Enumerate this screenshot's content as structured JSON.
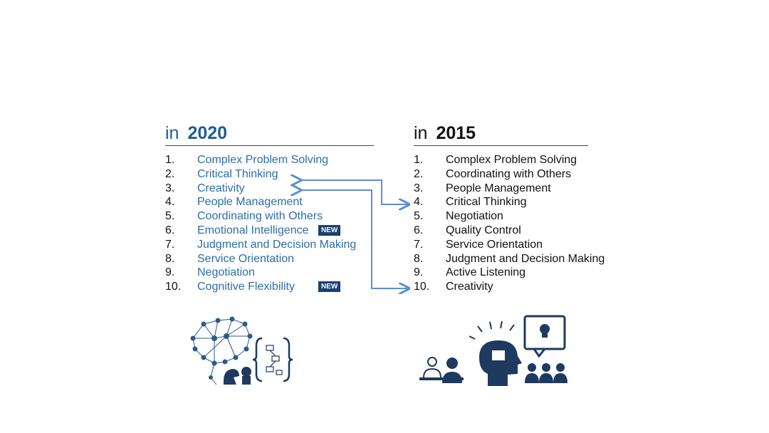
{
  "col2020": {
    "in": "in",
    "year": "2020",
    "items": [
      {
        "num": "1.",
        "label": "Complex Problem Solving"
      },
      {
        "num": "2.",
        "label": "Critical Thinking"
      },
      {
        "num": "3.",
        "label": "Creativity"
      },
      {
        "num": "4.",
        "label": "People Management"
      },
      {
        "num": "5.",
        "label": "Coordinating with Others"
      },
      {
        "num": "6.",
        "label": "Emotional Intelligence",
        "badge": "NEW"
      },
      {
        "num": "7.",
        "label": "Judgment and Decision Making"
      },
      {
        "num": "8.",
        "label": "Service Orientation"
      },
      {
        "num": "9.",
        "label": "Negotiation"
      },
      {
        "num": "10.",
        "label": "Cognitive Flexibility",
        "badge": "NEW"
      }
    ]
  },
  "col2015": {
    "in": "in",
    "year": "2015",
    "items": [
      {
        "num": "1.",
        "label": "Complex Problem Solving"
      },
      {
        "num": "2.",
        "label": "Coordinating with Others"
      },
      {
        "num": "3.",
        "label": "People Management"
      },
      {
        "num": "4.",
        "label": "Critical Thinking"
      },
      {
        "num": "5.",
        "label": "Negotiation"
      },
      {
        "num": "6.",
        "label": "Quality Control"
      },
      {
        "num": "7.",
        "label": "Service Orientation"
      },
      {
        "num": "8.",
        "label": "Judgment and Decision Making"
      },
      {
        "num": "9.",
        "label": "Active Listening"
      },
      {
        "num": "10.",
        "label": "Creativity"
      }
    ]
  },
  "colors": {
    "accent": "#2e6da8",
    "badge": "#1b3f74",
    "arrow": "#5b8fd0"
  }
}
